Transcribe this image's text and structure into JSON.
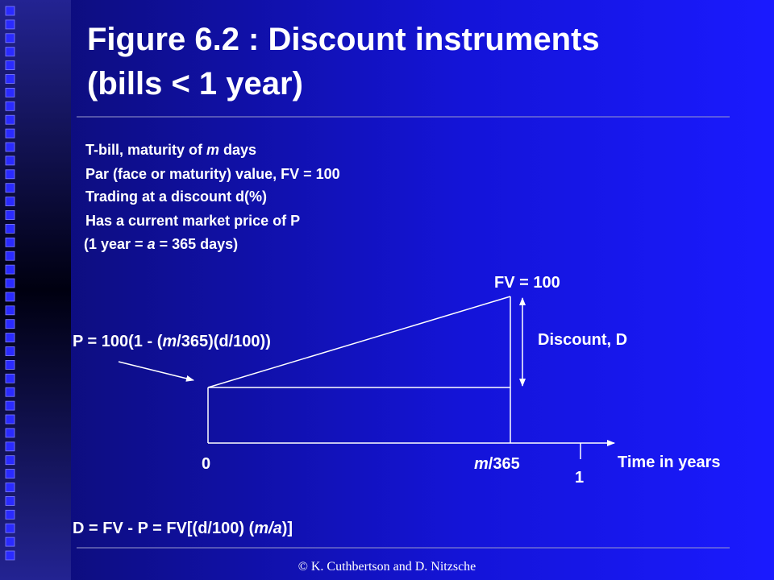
{
  "slide": {
    "title": [
      "Figure 6.2 : Discount instruments",
      "(bills < 1 year)"
    ],
    "bullets": [
      [
        "T-bill, maturity of ",
        "m",
        " days"
      ],
      [
        "Par (face or maturity) value, FV = 100"
      ],
      [
        "Trading at a discount d(%)"
      ],
      [
        "Has a current market price of P"
      ],
      [
        "(1 year = ",
        "a",
        " = 365 days)"
      ]
    ],
    "diagram": {
      "fv_label": "FV = 100",
      "price_label": [
        "P = 100(1 - (",
        "m",
        "/365)(d/100))"
      ],
      "discount_label": "Discount, D",
      "axis_zero": "0",
      "axis_maturity": [
        "m",
        "/365"
      ],
      "axis_one": "1",
      "axis_title": "Time in years"
    },
    "formula": [
      "D = FV - P = FV[(d/100) (",
      "m",
      "/",
      "a",
      ")]"
    ],
    "footer": "© K. Cuthbertson and D. Nitzsche"
  }
}
